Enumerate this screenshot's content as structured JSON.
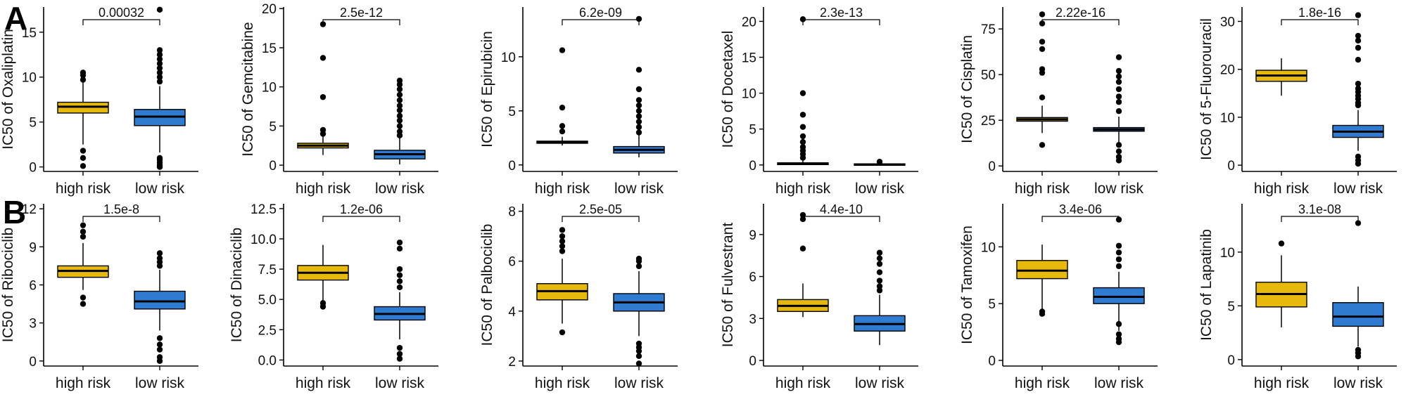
{
  "panel_labels": [
    "A",
    "B"
  ],
  "colors": {
    "high_risk": "#E8B90D",
    "low_risk": "#2F7BD1",
    "points": "#000000"
  },
  "chart_data": [
    {
      "type": "box",
      "title": "",
      "ylabel": "IC50 of Oxaliplatin",
      "categories": [
        "high risk",
        "low risk"
      ],
      "ylim": [
        -0.5,
        17.8
      ],
      "yticks": [
        0,
        5,
        10,
        15
      ],
      "pvalue": "0.00032",
      "boxes": [
        {
          "min": 2.5,
          "q1": 6.0,
          "median": 6.7,
          "q3": 7.2,
          "max": 9.5,
          "outliers": [
            0.1,
            1.0,
            1.8,
            9.7,
            10.2,
            10.5
          ]
        },
        {
          "min": 1.6,
          "q1": 4.6,
          "median": 5.6,
          "q3": 6.4,
          "max": 9.0,
          "outliers": [
            0.0,
            0.2,
            0.5,
            0.8,
            1.0,
            9.5,
            10.0,
            10.5,
            11.0,
            11.5,
            12.0,
            12.5,
            13.0,
            17.5
          ]
        }
      ]
    },
    {
      "type": "box",
      "title": "",
      "ylabel": "IC50 of Gemcitabine",
      "categories": [
        "high risk",
        "low risk"
      ],
      "ylim": [
        -0.8,
        20.2
      ],
      "yticks": [
        0,
        5,
        10,
        15,
        20
      ],
      "pvalue": "2.5e-12",
      "boxes": [
        {
          "min": 1.3,
          "q1": 2.2,
          "median": 2.5,
          "q3": 2.8,
          "max": 3.8,
          "outliers": [
            4.0,
            4.5,
            8.7,
            13.7,
            18.0
          ]
        },
        {
          "min": 0.1,
          "q1": 0.8,
          "median": 1.4,
          "q3": 1.9,
          "max": 3.5,
          "outliers": [
            3.8,
            4.3,
            5.0,
            5.7,
            6.3,
            7.0,
            7.6,
            8.3,
            9.0,
            9.7,
            10.3,
            10.8
          ]
        }
      ]
    },
    {
      "type": "box",
      "title": "",
      "ylabel": "IC50 of Epirubicin",
      "categories": [
        "high risk",
        "low risk"
      ],
      "ylim": [
        -0.6,
        14.6
      ],
      "yticks": [
        0,
        5,
        10
      ],
      "pvalue": "6.2e-09",
      "boxes": [
        {
          "min": 1.8,
          "q1": 2.0,
          "median": 2.1,
          "q3": 2.2,
          "max": 2.6,
          "outliers": [
            3.1,
            3.6,
            5.3,
            10.6
          ]
        },
        {
          "min": 0.7,
          "q1": 1.1,
          "median": 1.4,
          "q3": 1.7,
          "max": 2.8,
          "outliers": [
            3.0,
            3.5,
            4.0,
            4.5,
            5.0,
            5.5,
            6.0,
            7.0,
            8.8,
            13.5
          ]
        }
      ]
    },
    {
      "type": "box",
      "title": "",
      "ylabel": "IC50 of Docetaxel",
      "categories": [
        "high risk",
        "low risk"
      ],
      "ylim": [
        -0.9,
        22.0
      ],
      "yticks": [
        0,
        5,
        10,
        15,
        20
      ],
      "pvalue": "2.3e-13",
      "boxes": [
        {
          "min": 0.0,
          "q1": 0.05,
          "median": 0.15,
          "q3": 0.3,
          "max": 0.7,
          "outliers": [
            1.0,
            1.5,
            2.0,
            2.5,
            3.2,
            4.0,
            5.3,
            7.0,
            10.0,
            20.3
          ]
        },
        {
          "min": 0.0,
          "q1": 0.02,
          "median": 0.08,
          "q3": 0.15,
          "max": 0.3,
          "outliers": [
            0.45
          ]
        }
      ]
    },
    {
      "type": "box",
      "title": "",
      "ylabel": "IC50 of Cisplatin",
      "categories": [
        "high risk",
        "low risk"
      ],
      "ylim": [
        -3.0,
        87.0
      ],
      "yticks": [
        0,
        25,
        50,
        75
      ],
      "pvalue": "2.22e-16",
      "boxes": [
        {
          "min": 18.0,
          "q1": 24.5,
          "median": 25.5,
          "q3": 26.5,
          "max": 33.0,
          "outliers": [
            11.5,
            37.5,
            51.0,
            53.0,
            64.0,
            68.0,
            78.0,
            83.0
          ]
        },
        {
          "min": 13.0,
          "q1": 19.0,
          "median": 20.0,
          "q3": 21.0,
          "max": 27.0,
          "outliers": [
            3.0,
            5.0,
            8.0,
            11.5,
            30.0,
            35.0,
            38.0,
            42.0,
            46.0,
            49.0,
            52.0,
            59.5
          ]
        }
      ]
    },
    {
      "type": "box",
      "title": "",
      "ylabel": "IC50 of 5-Fluorouracil",
      "categories": [
        "high risk",
        "low risk"
      ],
      "ylim": [
        -1.3,
        33.0
      ],
      "yticks": [
        0,
        10,
        20,
        30
      ],
      "pvalue": "1.8e-16",
      "boxes": [
        {
          "min": 14.5,
          "q1": 17.5,
          "median": 18.7,
          "q3": 19.8,
          "max": 22.3,
          "outliers": []
        },
        {
          "min": 3.0,
          "q1": 5.8,
          "median": 7.0,
          "q3": 8.3,
          "max": 11.5,
          "outliers": [
            0.3,
            1.0,
            1.8,
            12.5,
            13.0,
            13.8,
            14.5,
            15.3,
            16.0,
            17.0,
            22.0,
            24.5,
            26.0,
            27.0,
            31.3
          ]
        }
      ]
    },
    {
      "type": "box",
      "title": "",
      "ylabel": "IC50 of Ribociclib",
      "categories": [
        "high risk",
        "low risk"
      ],
      "ylim": [
        -0.4,
        12.4
      ],
      "yticks": [
        0,
        3,
        6,
        9,
        12
      ],
      "pvalue": "1.5e-8",
      "boxes": [
        {
          "min": 5.6,
          "q1": 6.6,
          "median": 7.1,
          "q3": 7.5,
          "max": 9.3,
          "outliers": [
            4.5,
            5.0,
            9.8,
            10.2,
            10.7
          ]
        },
        {
          "min": 2.4,
          "q1": 4.1,
          "median": 4.7,
          "q3": 5.5,
          "max": 7.2,
          "outliers": [
            0.0,
            0.3,
            0.9,
            1.3,
            1.8,
            7.5,
            7.8,
            8.1,
            8.5
          ]
        }
      ]
    },
    {
      "type": "box",
      "title": "",
      "ylabel": "IC50 of Dinaciclib",
      "categories": [
        "high risk",
        "low risk"
      ],
      "ylim": [
        -0.5,
        12.9
      ],
      "yticks": [
        0.0,
        2.5,
        5.0,
        7.5,
        10.0,
        12.5
      ],
      "pvalue": "1.2e-06",
      "boxes": [
        {
          "min": 4.9,
          "q1": 6.6,
          "median": 7.2,
          "q3": 7.8,
          "max": 9.5,
          "outliers": [
            4.4,
            4.7
          ]
        },
        {
          "min": 1.7,
          "q1": 3.3,
          "median": 3.8,
          "q3": 4.4,
          "max": 5.6,
          "outliers": [
            0.1,
            0.5,
            1.0,
            6.0,
            6.5,
            7.0,
            7.5,
            9.2,
            9.7
          ]
        }
      ]
    },
    {
      "type": "box",
      "title": "",
      "ylabel": "IC50 of Palbociclib",
      "categories": [
        "high risk",
        "low risk"
      ],
      "ylim": [
        1.8,
        8.3
      ],
      "yticks": [
        2,
        4,
        6,
        8
      ],
      "pvalue": "2.5e-05",
      "boxes": [
        {
          "min": 3.5,
          "q1": 4.45,
          "median": 4.8,
          "q3": 5.1,
          "max": 6.1,
          "outliers": [
            3.15,
            6.4,
            6.6,
            6.8,
            7.0,
            7.25
          ]
        },
        {
          "min": 3.0,
          "q1": 4.0,
          "median": 4.35,
          "q3": 4.7,
          "max": 5.6,
          "outliers": [
            1.9,
            2.2,
            2.4,
            2.55,
            2.7,
            5.8,
            6.0,
            6.1
          ]
        }
      ]
    },
    {
      "type": "box",
      "title": "",
      "ylabel": "IC50 of Fulvestrant",
      "categories": [
        "high risk",
        "low risk"
      ],
      "ylim": [
        -0.4,
        11.2
      ],
      "yticks": [
        0,
        3,
        6,
        9
      ],
      "pvalue": "4.4e-10",
      "boxes": [
        {
          "min": 3.1,
          "q1": 3.5,
          "median": 3.9,
          "q3": 4.35,
          "max": 5.5,
          "outliers": [
            8.0,
            10.1,
            10.4
          ]
        },
        {
          "min": 1.1,
          "q1": 2.1,
          "median": 2.6,
          "q3": 3.2,
          "max": 4.7,
          "outliers": [
            5.0,
            5.3,
            5.7,
            6.3,
            6.9,
            7.3,
            7.7
          ]
        }
      ]
    },
    {
      "type": "box",
      "title": "",
      "ylabel": "IC50 of Tamoxifen",
      "categories": [
        "high risk",
        "low risk"
      ],
      "ylim": [
        -0.5,
        13.8
      ],
      "yticks": [
        0,
        5,
        10
      ],
      "pvalue": "3.4e-06",
      "boxes": [
        {
          "min": 4.5,
          "q1": 7.2,
          "median": 7.9,
          "q3": 8.8,
          "max": 10.2,
          "outliers": [
            4.1,
            4.3
          ]
        },
        {
          "min": 2.6,
          "q1": 5.0,
          "median": 5.6,
          "q3": 6.4,
          "max": 7.8,
          "outliers": [
            1.6,
            1.9,
            2.3,
            3.2,
            8.3,
            8.9,
            9.5,
            10.1,
            12.4
          ]
        }
      ]
    },
    {
      "type": "box",
      "title": "",
      "ylabel": "IC50 of Lapatinib",
      "categories": [
        "high risk",
        "low risk"
      ],
      "ylim": [
        -0.6,
        14.5
      ],
      "yticks": [
        0,
        5,
        10
      ],
      "pvalue": "3.1e-08",
      "boxes": [
        {
          "min": 3.0,
          "q1": 4.9,
          "median": 6.1,
          "q3": 7.2,
          "max": 9.7,
          "outliers": [
            10.8
          ]
        },
        {
          "min": 1.2,
          "q1": 3.1,
          "median": 4.0,
          "q3": 5.3,
          "max": 6.8,
          "outliers": [
            0.3,
            0.6,
            0.9,
            12.7
          ]
        }
      ]
    }
  ]
}
